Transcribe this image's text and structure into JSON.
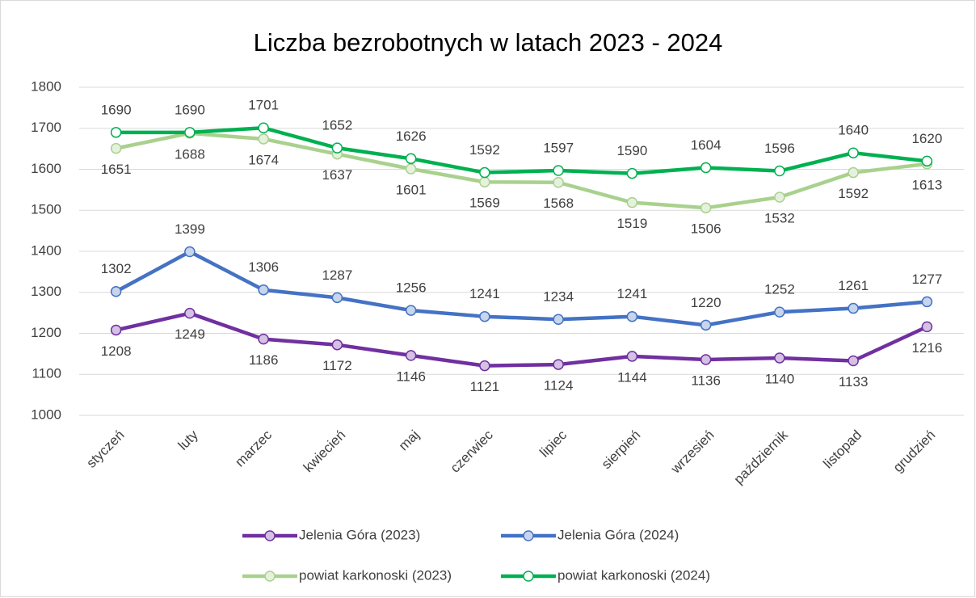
{
  "chart_data": {
    "type": "line",
    "title": "Liczba bezrobotnych w latach 2023 - 2024",
    "categories": [
      "styczeń",
      "luty",
      "marzec",
      "kwiecień",
      "maj",
      "czerwiec",
      "lipiec",
      "sierpień",
      "wrzesień",
      "październik",
      "listopad",
      "grudzień"
    ],
    "series": [
      {
        "name": "Jelenia Góra (2023)",
        "color": "#7030a0",
        "values": [
          1208,
          1249,
          1186,
          1172,
          1146,
          1121,
          1124,
          1144,
          1136,
          1140,
          1133,
          1216
        ]
      },
      {
        "name": "Jelenia Góra (2024)",
        "color": "#4472c4",
        "values": [
          1302,
          1399,
          1306,
          1287,
          1256,
          1241,
          1234,
          1241,
          1220,
          1252,
          1261,
          1277
        ]
      },
      {
        "name": "powiat karkonoski (2023)",
        "color": "#a9d18e",
        "values": [
          1651,
          1688,
          1674,
          1637,
          1601,
          1569,
          1568,
          1519,
          1506,
          1532,
          1592,
          1613
        ]
      },
      {
        "name": "powiat karkonoski (2024)",
        "color": "#00b050",
        "values": [
          1690,
          1690,
          1701,
          1652,
          1626,
          1592,
          1597,
          1590,
          1604,
          1596,
          1640,
          1620
        ]
      }
    ],
    "ylim": [
      1000,
      1800
    ],
    "yticks": [
      1000,
      1100,
      1200,
      1300,
      1400,
      1500,
      1600,
      1700,
      1800
    ],
    "grid": true,
    "legend": "bottom"
  }
}
